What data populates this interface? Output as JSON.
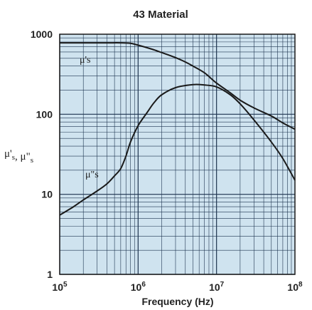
{
  "chart_data": {
    "type": "line",
    "title": "43 Material",
    "xlabel": "Frequency (Hz)",
    "ylabel": {
      "sym1": "μ's",
      "sep": ", ",
      "sym2": "μ\"s"
    },
    "xscale": "log",
    "yscale": "log",
    "xlim": [
      100000,
      100000000
    ],
    "ylim": [
      1,
      1000
    ],
    "x_ticks": [
      {
        "base": "10",
        "exp": "5",
        "value": 100000
      },
      {
        "base": "10",
        "exp": "6",
        "value": 1000000
      },
      {
        "base": "10",
        "exp": "7",
        "value": 10000000
      },
      {
        "base": "10",
        "exp": "8",
        "value": 100000000
      }
    ],
    "y_ticks": [
      {
        "label": "1",
        "value": 1
      },
      {
        "label": "10",
        "value": 10
      },
      {
        "label": "100",
        "value": 100
      },
      {
        "label": "1000",
        "value": 1000
      }
    ],
    "grid": true,
    "background_color": "#cfe3ef",
    "grid_color": "#1f3550",
    "series": [
      {
        "name": "μ's",
        "color": "#1a1a1a",
        "points": [
          [
            100000,
            780
          ],
          [
            200000,
            780
          ],
          [
            400000,
            780
          ],
          [
            600000,
            780
          ],
          [
            800000,
            770
          ],
          [
            1000000,
            730
          ],
          [
            1500000,
            650
          ],
          [
            2000000,
            590
          ],
          [
            3000000,
            510
          ],
          [
            4000000,
            450
          ],
          [
            5000000,
            400
          ],
          [
            7000000,
            330
          ],
          [
            10000000,
            245
          ],
          [
            15000000,
            185
          ],
          [
            20000000,
            150
          ],
          [
            30000000,
            120
          ],
          [
            50000000,
            95
          ],
          [
            70000000,
            78
          ],
          [
            100000000,
            65
          ]
        ]
      },
      {
        "name": "μ\"s",
        "color": "#1a1a1a",
        "points": [
          [
            100000,
            5.5
          ],
          [
            150000,
            7
          ],
          [
            200000,
            8.5
          ],
          [
            300000,
            11
          ],
          [
            400000,
            13.5
          ],
          [
            500000,
            17
          ],
          [
            600000,
            21
          ],
          [
            700000,
            30
          ],
          [
            800000,
            45
          ],
          [
            1000000,
            72
          ],
          [
            1300000,
            105
          ],
          [
            1600000,
            140
          ],
          [
            2000000,
            175
          ],
          [
            3000000,
            215
          ],
          [
            5000000,
            235
          ],
          [
            7000000,
            232
          ],
          [
            10000000,
            220
          ],
          [
            15000000,
            175
          ],
          [
            20000000,
            135
          ],
          [
            30000000,
            85
          ],
          [
            50000000,
            45
          ],
          [
            70000000,
            28
          ],
          [
            100000000,
            15
          ]
        ]
      }
    ]
  }
}
